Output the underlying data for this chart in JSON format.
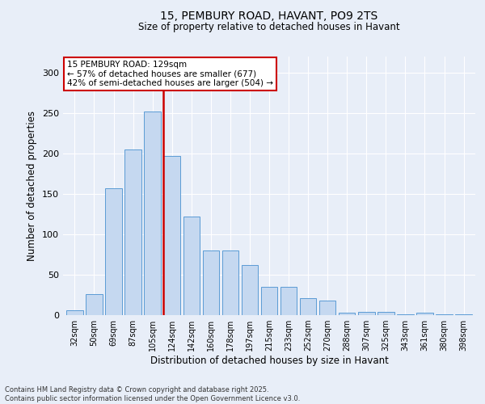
{
  "title1": "15, PEMBURY ROAD, HAVANT, PO9 2TS",
  "title2": "Size of property relative to detached houses in Havant",
  "xlabel": "Distribution of detached houses by size in Havant",
  "ylabel": "Number of detached properties",
  "categories": [
    "32sqm",
    "50sqm",
    "69sqm",
    "87sqm",
    "105sqm",
    "124sqm",
    "142sqm",
    "160sqm",
    "178sqm",
    "197sqm",
    "215sqm",
    "233sqm",
    "252sqm",
    "270sqm",
    "288sqm",
    "307sqm",
    "325sqm",
    "343sqm",
    "361sqm",
    "380sqm",
    "398sqm"
  ],
  "values": [
    6,
    26,
    157,
    205,
    252,
    197,
    122,
    80,
    80,
    62,
    35,
    35,
    21,
    18,
    3,
    4,
    4,
    1,
    3,
    1,
    1
  ],
  "bar_color": "#c5d8f0",
  "bar_edge_color": "#5b9bd5",
  "vline_color": "#cc0000",
  "annotation_text": "15 PEMBURY ROAD: 129sqm\n← 57% of detached houses are smaller (677)\n42% of semi-detached houses are larger (504) →",
  "annotation_box_color": "#ffffff",
  "annotation_box_edge": "#cc0000",
  "ylim": [
    0,
    320
  ],
  "yticks": [
    0,
    50,
    100,
    150,
    200,
    250,
    300
  ],
  "bg_color": "#e8eef8",
  "grid_color": "#ffffff",
  "footer": "Contains HM Land Registry data © Crown copyright and database right 2025.\nContains public sector information licensed under the Open Government Licence v3.0."
}
